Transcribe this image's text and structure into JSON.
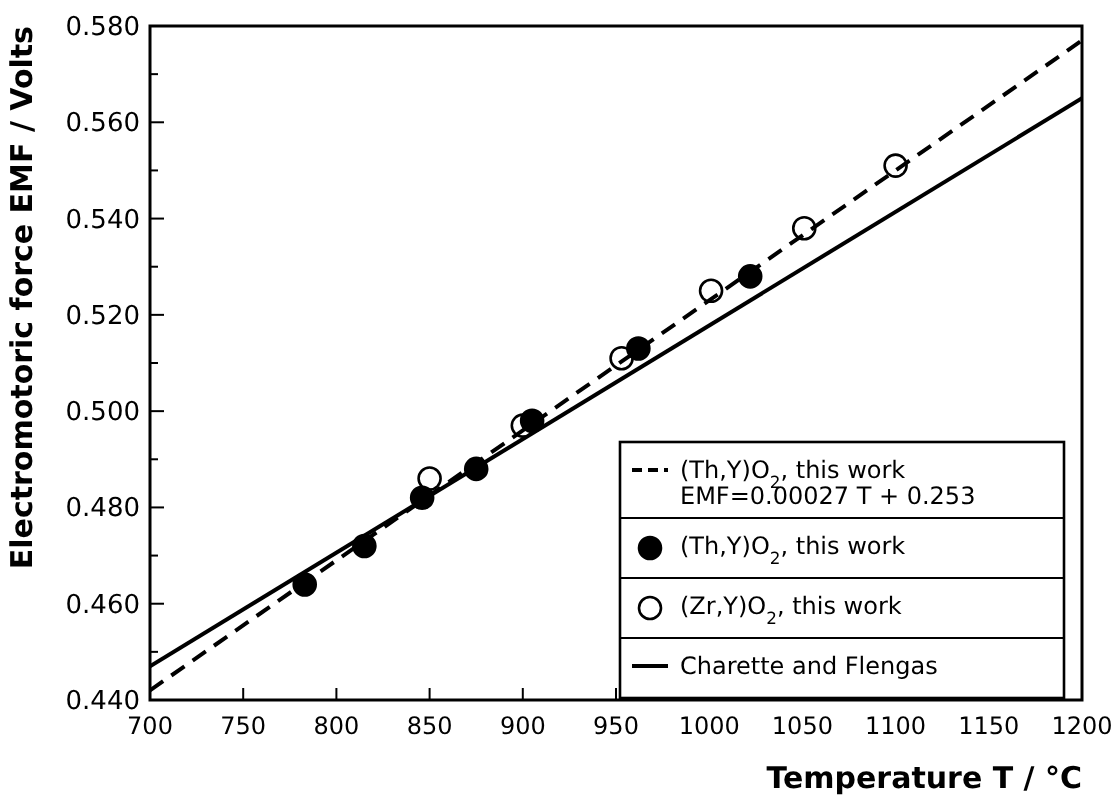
{
  "chart_data": {
    "type": "scatter",
    "xlabel": "Temperature T / °C",
    "ylabel": "Electromotoric force EMF / Volts",
    "xlim": [
      700,
      1200
    ],
    "xticks": [
      700,
      750,
      800,
      850,
      900,
      950,
      1000,
      1050,
      1100,
      1150,
      1200
    ],
    "ylim": [
      0.44,
      0.58
    ],
    "yticks": [
      {
        "value": 0.44,
        "label": "0.440"
      },
      {
        "value": 0.45,
        "label": null
      },
      {
        "value": 0.46,
        "label": "0.460"
      },
      {
        "value": 0.47,
        "label": null
      },
      {
        "value": 0.48,
        "label": "0.480"
      },
      {
        "value": 0.49,
        "label": null
      },
      {
        "value": 0.5,
        "label": "0.500"
      },
      {
        "value": 0.51,
        "label": null
      },
      {
        "value": 0.52,
        "label": "0.520"
      },
      {
        "value": 0.53,
        "label": null
      },
      {
        "value": 0.54,
        "label": "0.540"
      },
      {
        "value": 0.55,
        "label": null
      },
      {
        "value": 0.56,
        "label": "0.560"
      },
      {
        "value": 0.57,
        "label": null
      },
      {
        "value": 0.58,
        "label": "0.580"
      }
    ],
    "legend": "bottom right",
    "grid": false,
    "annotations": [
      "EMF=0.00027 T + 0.253"
    ],
    "series": [
      {
        "name": "(Th,Y)O$_{2}$, this work",
        "type": "line",
        "line_style": "dashed",
        "color": "#000000",
        "x": [
          700,
          1200
        ],
        "values": [
          0.442,
          0.577
        ]
      },
      {
        "name": "(Th,Y)O$_{2}$, this work",
        "marker": "circle",
        "color": "#000000",
        "x": [
          783,
          815,
          846,
          875,
          905,
          962,
          1022
        ],
        "values": [
          0.464,
          0.472,
          0.482,
          0.488,
          0.498,
          0.513,
          0.528
        ]
      },
      {
        "name": "(Zr,Y)O$_{2}$, this work",
        "marker": "circle",
        "color": "#ffffff",
        "x": [
          850,
          900,
          953,
          1001,
          1051,
          1100
        ],
        "values": [
          0.486,
          0.497,
          0.511,
          0.525,
          0.538,
          0.551
        ]
      },
      {
        "name": "Charette and Flengas",
        "type": "line",
        "line_style": "solid",
        "color": "#000000",
        "x": [
          700,
          1200
        ],
        "values": [
          0.447,
          0.565
        ]
      }
    ]
  }
}
